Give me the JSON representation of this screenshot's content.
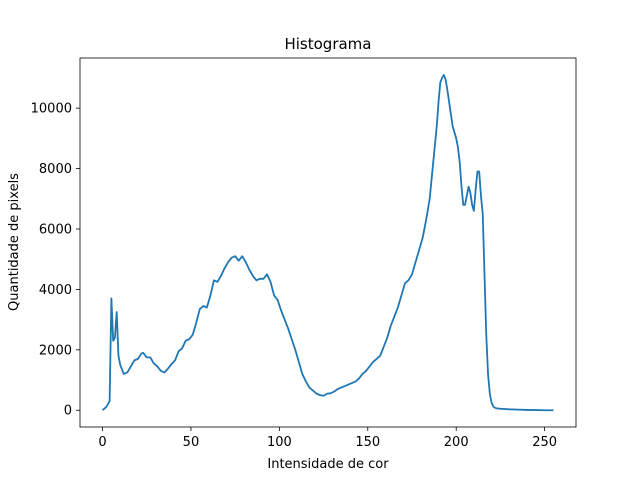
{
  "chart_data": {
    "type": "line",
    "title": "Histograma",
    "xlabel": "Intensidade de cor",
    "ylabel": "Quantidade de pixels",
    "xlim": [
      -12.75,
      267.75
    ],
    "ylim": [
      -555,
      11660
    ],
    "x_ticks": [
      0,
      50,
      100,
      150,
      200,
      250
    ],
    "y_ticks": [
      0,
      2000,
      4000,
      6000,
      8000,
      10000
    ],
    "grid": false,
    "color": "#1f77b4",
    "series": [
      {
        "x": [
          0,
          2,
          4,
          5,
          6,
          7,
          8,
          9,
          10,
          12,
          14,
          16,
          18,
          20,
          22,
          23,
          25,
          27,
          29,
          31,
          33,
          35,
          37,
          39,
          41,
          43,
          45,
          47,
          49,
          51,
          53,
          55,
          57,
          59,
          61,
          63,
          65,
          67,
          69,
          71,
          73,
          75,
          77,
          79,
          81,
          83,
          85,
          87,
          89,
          91,
          93,
          95,
          97,
          99,
          101,
          103,
          105,
          107,
          109,
          111,
          113,
          115,
          117,
          119,
          121,
          123,
          125,
          127,
          129,
          131,
          133,
          135,
          137,
          139,
          141,
          143,
          145,
          147,
          149,
          151,
          153,
          155,
          157,
          159,
          161,
          163,
          165,
          167,
          169,
          171,
          173,
          175,
          177,
          179,
          181,
          183,
          185,
          187,
          189,
          190,
          191,
          192,
          193,
          194,
          195,
          196,
          197,
          198,
          199,
          200,
          201,
          202,
          203,
          204,
          205,
          206,
          207,
          208,
          209,
          210,
          211,
          212,
          213,
          214,
          215,
          216,
          217,
          218,
          219,
          220,
          221,
          222,
          223,
          225,
          230,
          235,
          240,
          245,
          250,
          255
        ],
        "y": [
          0,
          100,
          300,
          3700,
          2300,
          2400,
          3250,
          1800,
          1500,
          1200,
          1250,
          1450,
          1650,
          1700,
          1880,
          1900,
          1750,
          1750,
          1550,
          1450,
          1300,
          1250,
          1380,
          1530,
          1650,
          1950,
          2050,
          2300,
          2350,
          2500,
          2900,
          3350,
          3450,
          3400,
          3800,
          4300,
          4250,
          4450,
          4700,
          4900,
          5050,
          5100,
          4950,
          5100,
          4900,
          4650,
          4450,
          4300,
          4350,
          4350,
          4500,
          4250,
          3800,
          3650,
          3300,
          3000,
          2700,
          2350,
          2000,
          1600,
          1200,
          950,
          750,
          650,
          550,
          500,
          480,
          550,
          560,
          620,
          700,
          750,
          800,
          850,
          900,
          950,
          1050,
          1200,
          1300,
          1450,
          1600,
          1700,
          1800,
          2100,
          2400,
          2800,
          3100,
          3400,
          3800,
          4200,
          4300,
          4500,
          4900,
          5300,
          5700,
          6300,
          7000,
          8200,
          9400,
          10200,
          10850,
          11000,
          11100,
          10950,
          10600,
          10200,
          9800,
          9400,
          9200,
          9000,
          8700,
          8200,
          7400,
          6800,
          6800,
          7100,
          7400,
          7200,
          6800,
          6600,
          7300,
          7900,
          7900,
          7100,
          6500,
          4500,
          2500,
          1200,
          550,
          250,
          120,
          80,
          60,
          50,
          30,
          20,
          10,
          5,
          0,
          0
        ]
      }
    ]
  }
}
